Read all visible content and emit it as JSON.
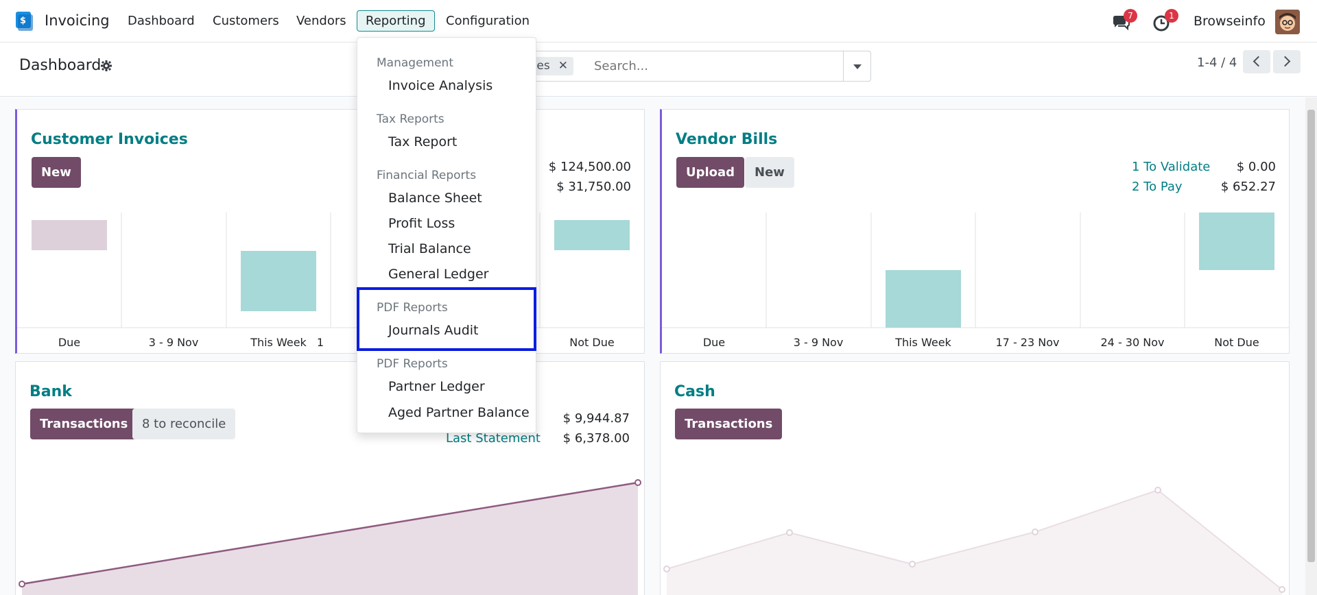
{
  "app": {
    "name": "Invoicing"
  },
  "nav": {
    "items": [
      "Dashboard",
      "Customers",
      "Vendors",
      "Reporting",
      "Configuration"
    ],
    "active": "Reporting",
    "messages_badge": "7",
    "activities_badge": "1",
    "user": "Browseinfo"
  },
  "control": {
    "title": "Dashboard",
    "facet": "rites",
    "search_placeholder": "Search...",
    "pager": "1-4 / 4"
  },
  "reporting_menu": {
    "sections": [
      {
        "header": "Management",
        "items": [
          "Invoice Analysis"
        ]
      },
      {
        "header": "Tax Reports",
        "items": [
          "Tax Report"
        ]
      },
      {
        "header": "Financial Reports",
        "items": [
          "Balance Sheet",
          "Profit Loss",
          "Trial Balance",
          "General Ledger"
        ]
      },
      {
        "header": "PDF Reports",
        "items": [
          "Journals Audit"
        ]
      },
      {
        "header": "PDF Reports",
        "items": [
          "Partner Ledger",
          "Aged Partner Balance"
        ]
      }
    ]
  },
  "cards": {
    "customer_invoices": {
      "title": "Customer Invoices",
      "new_label": "New",
      "amount_1": "$ 124,500.00",
      "amount_2": "$ 31,750.00",
      "chart_labels": [
        "Due",
        "3 - 9 Nov",
        "This Week",
        "1",
        "",
        "Not Due"
      ]
    },
    "vendor_bills": {
      "title": "Vendor Bills",
      "upload_label": "Upload",
      "new_label": "New",
      "to_validate_label": "1 To Validate",
      "to_validate_value": "$ 0.00",
      "to_pay_label": "2 To Pay",
      "to_pay_value": "$ 652.27",
      "chart_labels": [
        "Due",
        "3 - 9 Nov",
        "This Week",
        "17 - 23 Nov",
        "24 - 30 Nov",
        "Not Due"
      ]
    },
    "bank": {
      "title": "Bank",
      "transactions_label": "Transactions",
      "reconcile_label": "8 to reconcile",
      "balance_value": "$ 9,944.87",
      "last_statement_label": "Last Statement",
      "last_statement_value": "$ 6,378.00"
    },
    "cash": {
      "title": "Cash",
      "transactions_label": "Transactions"
    }
  },
  "colors": {
    "primary": "#714b67",
    "teal": "#017e84",
    "bar": "#a6d9d8",
    "bar_past": "#ddd0da",
    "highlight": "#0b1de0"
  }
}
